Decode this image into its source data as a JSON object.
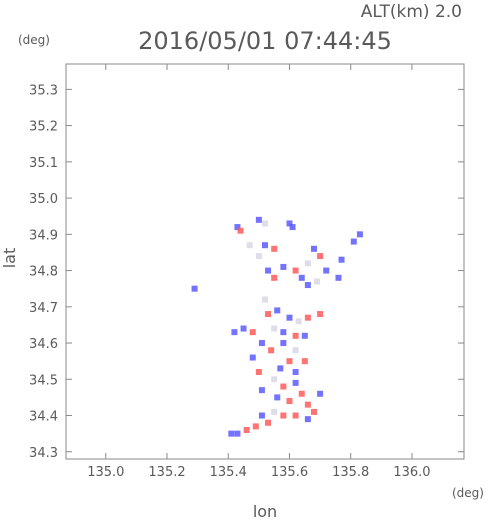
{
  "chart_data": {
    "type": "heatmap",
    "title": "2016/05/01 07:44:45",
    "subtitle": "ALT(km)  2.0",
    "xlabel": "lon",
    "ylabel": "lat",
    "x_unit": "(deg)",
    "y_unit": "(deg)",
    "xlim": [
      134.87,
      136.17
    ],
    "ylim": [
      34.28,
      35.37
    ],
    "x_ticks": [
      "135.0",
      "135.2",
      "135.4",
      "135.6",
      "135.8",
      "136.0"
    ],
    "y_ticks": [
      "34.3",
      "34.4",
      "34.5",
      "34.6",
      "34.7",
      "34.8",
      "34.9",
      "35.0",
      "35.1",
      "35.2",
      "35.3"
    ],
    "x_tick_values": [
      135.0,
      135.2,
      135.4,
      135.6,
      135.8,
      136.0
    ],
    "y_tick_values": [
      34.3,
      34.4,
      34.5,
      34.6,
      34.7,
      34.8,
      34.9,
      35.0,
      35.1,
      35.2,
      35.3
    ],
    "grid": false,
    "colors": {
      "positive": "#ff5a5a",
      "negative": "#5a5aff",
      "neutral": "#d8d8e8"
    },
    "cells": [
      [
        135.43,
        34.92,
        "neg"
      ],
      [
        135.44,
        34.91,
        "pos"
      ],
      [
        135.5,
        34.94,
        "neg"
      ],
      [
        135.52,
        34.93,
        "neu"
      ],
      [
        135.6,
        34.93,
        "neg"
      ],
      [
        135.61,
        34.92,
        "neg"
      ],
      [
        135.47,
        34.87,
        "neu"
      ],
      [
        135.52,
        34.87,
        "neg"
      ],
      [
        135.55,
        34.86,
        "pos"
      ],
      [
        135.5,
        34.84,
        "neu"
      ],
      [
        135.53,
        34.8,
        "neg"
      ],
      [
        135.55,
        34.78,
        "pos"
      ],
      [
        135.58,
        34.81,
        "neg"
      ],
      [
        135.62,
        34.8,
        "pos"
      ],
      [
        135.64,
        34.78,
        "neg"
      ],
      [
        135.66,
        34.82,
        "neu"
      ],
      [
        135.68,
        34.86,
        "neg"
      ],
      [
        135.7,
        34.84,
        "pos"
      ],
      [
        135.66,
        34.76,
        "neg"
      ],
      [
        135.69,
        34.77,
        "neu"
      ],
      [
        135.72,
        34.8,
        "neg"
      ],
      [
        135.76,
        34.78,
        "neg"
      ],
      [
        135.77,
        34.83,
        "neg"
      ],
      [
        135.81,
        34.88,
        "neg"
      ],
      [
        135.83,
        34.9,
        "neg"
      ],
      [
        135.29,
        34.75,
        "neg"
      ],
      [
        135.52,
        34.72,
        "neu"
      ],
      [
        135.56,
        34.69,
        "neg"
      ],
      [
        135.53,
        34.68,
        "pos"
      ],
      [
        135.6,
        34.67,
        "neg"
      ],
      [
        135.63,
        34.66,
        "neu"
      ],
      [
        135.66,
        34.67,
        "pos"
      ],
      [
        135.55,
        34.64,
        "neu"
      ],
      [
        135.58,
        34.63,
        "neg"
      ],
      [
        135.62,
        34.62,
        "pos"
      ],
      [
        135.65,
        34.62,
        "neg"
      ],
      [
        135.45,
        34.64,
        "neg"
      ],
      [
        135.48,
        34.63,
        "pos"
      ],
      [
        135.51,
        34.6,
        "neg"
      ],
      [
        135.54,
        34.58,
        "pos"
      ],
      [
        135.58,
        34.6,
        "neg"
      ],
      [
        135.62,
        34.58,
        "neu"
      ],
      [
        135.6,
        34.55,
        "pos"
      ],
      [
        135.57,
        34.53,
        "neg"
      ],
      [
        135.62,
        34.52,
        "neg"
      ],
      [
        135.65,
        34.55,
        "pos"
      ],
      [
        135.55,
        34.5,
        "neu"
      ],
      [
        135.58,
        34.48,
        "pos"
      ],
      [
        135.62,
        34.49,
        "neg"
      ],
      [
        135.64,
        34.46,
        "pos"
      ],
      [
        135.6,
        34.44,
        "pos"
      ],
      [
        135.56,
        34.45,
        "neg"
      ],
      [
        135.66,
        34.43,
        "pos"
      ],
      [
        135.7,
        34.46,
        "neg"
      ],
      [
        135.55,
        34.41,
        "neu"
      ],
      [
        135.58,
        34.4,
        "pos"
      ],
      [
        135.62,
        34.4,
        "pos"
      ],
      [
        135.66,
        34.39,
        "neg"
      ],
      [
        135.51,
        34.4,
        "neg"
      ],
      [
        135.49,
        34.37,
        "pos"
      ],
      [
        135.46,
        34.36,
        "pos"
      ],
      [
        135.43,
        34.35,
        "neg"
      ],
      [
        135.41,
        34.35,
        "neg"
      ],
      [
        135.53,
        34.38,
        "pos"
      ],
      [
        135.68,
        34.41,
        "pos"
      ],
      [
        135.51,
        34.47,
        "neg"
      ],
      [
        135.5,
        34.52,
        "pos"
      ],
      [
        135.48,
        34.56,
        "neg"
      ],
      [
        135.7,
        34.68,
        "pos"
      ],
      [
        135.42,
        34.63,
        "neg"
      ]
    ]
  }
}
